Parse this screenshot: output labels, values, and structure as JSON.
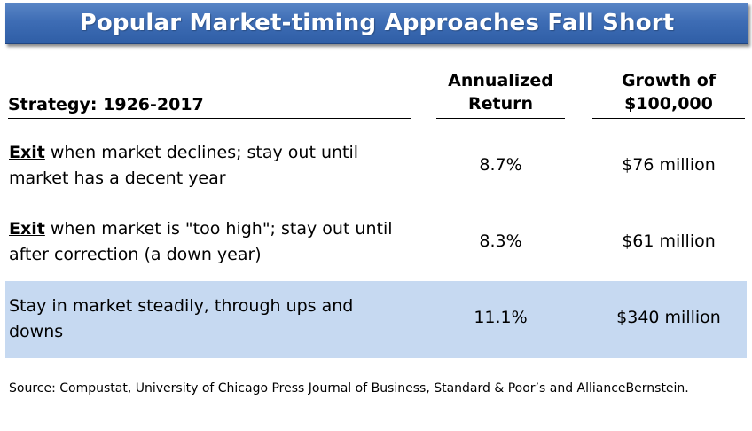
{
  "title": "Popular Market-timing Approaches Fall Short",
  "header": {
    "strategy": "Strategy: 1926-2017",
    "return_line1": "Annualized",
    "return_line2": "Return",
    "growth_line1": "Growth of",
    "growth_line2": "$100,000"
  },
  "rows": [
    {
      "keyword": "Exit",
      "strategy_rest": " when market declines; stay out until market has a decent year",
      "return": "8.7%",
      "growth": "$76 million",
      "highlighted": false
    },
    {
      "keyword": "Exit",
      "strategy_rest": " when market is \"too high\"; stay out until after correction (a down year)",
      "return": "8.3%",
      "growth": "$61 million",
      "highlighted": false
    },
    {
      "keyword": "",
      "strategy_rest": "Stay in market steadily, through ups and downs",
      "return": "11.1%",
      "growth": "$340 million",
      "highlighted": true
    }
  ],
  "source": "Source: Compustat, University of Chicago Press Journal of Business, Standard & Poor’s and AllianceBernstein.",
  "colors": {
    "title_bar": "#3e6db5",
    "title_text": "#ffffff",
    "highlight_row": "#c6d9f1"
  }
}
